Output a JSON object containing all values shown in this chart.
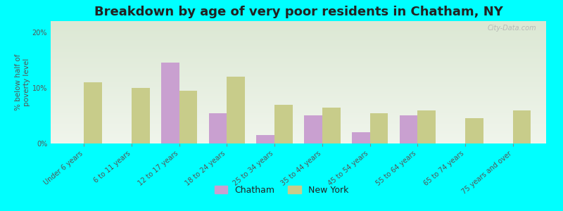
{
  "title": "Breakdown by age of very poor residents in Chatham, NY",
  "ylabel": "% below half of\npoverty level",
  "background_outer": "#00FFFF",
  "background_inner_top": "#dce8d4",
  "background_inner_bottom": "#f0f5ec",
  "categories": [
    "Under 6 years",
    "6 to 11 years",
    "12 to 17 years",
    "18 to 24 years",
    "25 to 34 years",
    "35 to 44 years",
    "45 to 54 years",
    "55 to 64 years",
    "65 to 74 years",
    "75 years and over"
  ],
  "chatham_values": [
    null,
    null,
    14.5,
    5.5,
    1.5,
    5.0,
    2.0,
    5.0,
    null,
    null
  ],
  "newyork_values": [
    11.0,
    10.0,
    9.5,
    12.0,
    7.0,
    6.5,
    5.5,
    6.0,
    4.5,
    6.0
  ],
  "chatham_color": "#c9a0d0",
  "newyork_color": "#c8cc8a",
  "ylim": [
    0,
    22
  ],
  "yticks": [
    0,
    10,
    20
  ],
  "ytick_labels": [
    "0%",
    "10%",
    "20%"
  ],
  "bar_width": 0.38,
  "title_fontsize": 13,
  "ylabel_fontsize": 7.5,
  "tick_fontsize": 7,
  "legend_fontsize": 9,
  "watermark": "City-Data.com"
}
